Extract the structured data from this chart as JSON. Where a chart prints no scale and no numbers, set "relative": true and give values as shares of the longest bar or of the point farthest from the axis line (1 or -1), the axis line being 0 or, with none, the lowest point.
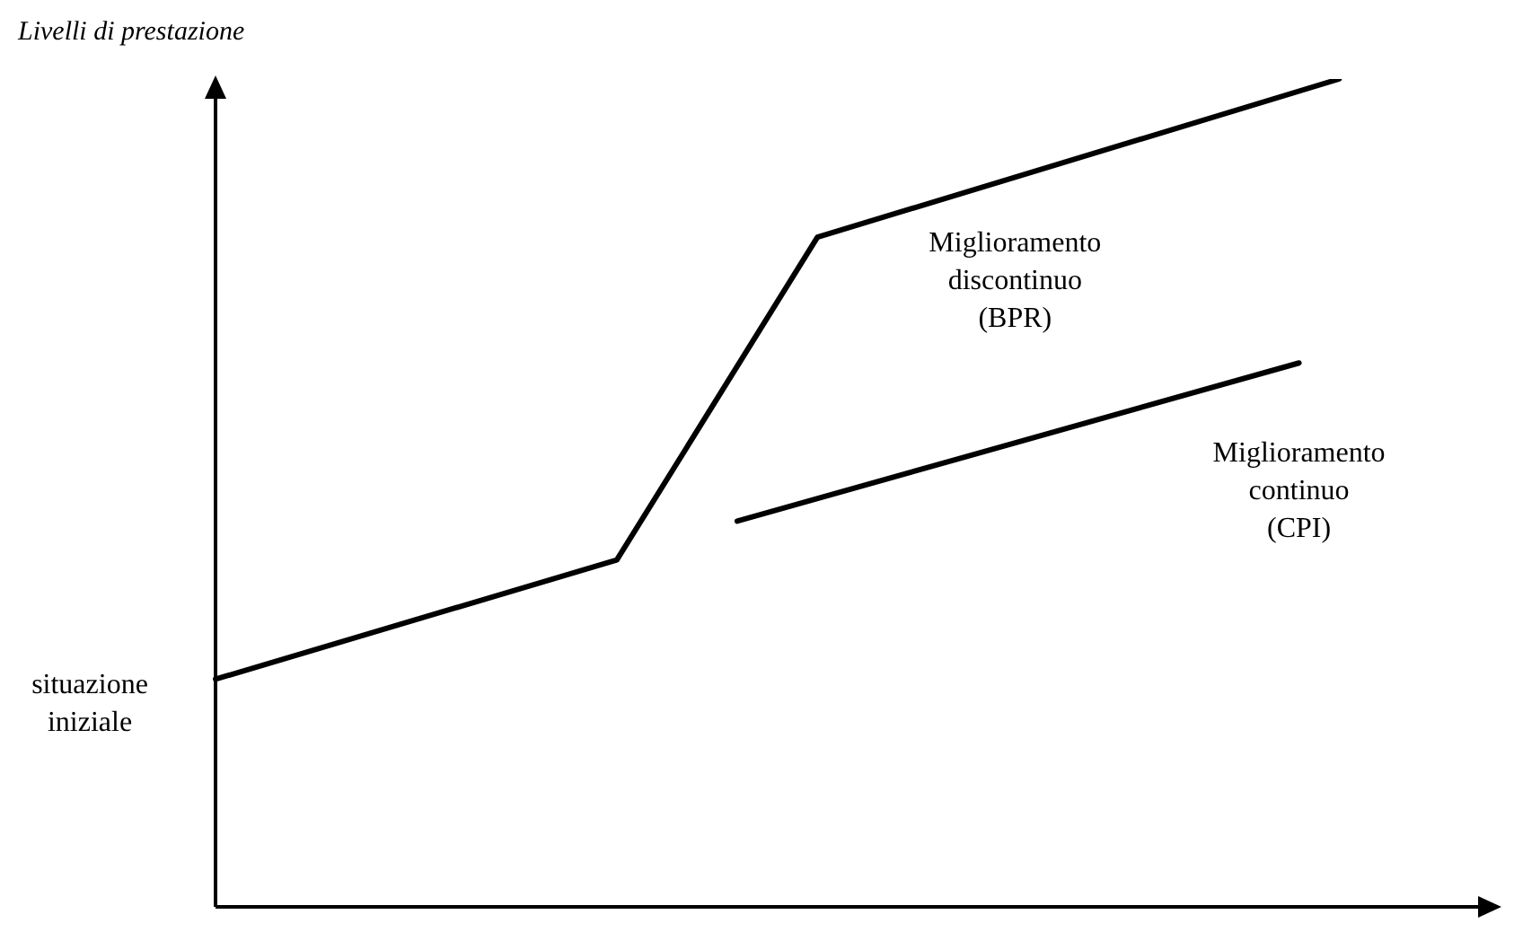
{
  "chart_data": {
    "type": "line",
    "relative": true,
    "ylabel": "Livelli di prestazione",
    "annotations": [
      "situazione iniziale"
    ],
    "marker": "none",
    "legend": false,
    "grid": false,
    "tick_labels": false,
    "categories": [
      null,
      null,
      null,
      null,
      null,
      null,
      null,
      null,
      null,
      null,
      null,
      null,
      null,
      null,
      null,
      null,
      null,
      null,
      null,
      null,
      null,
      null,
      null,
      null,
      null,
      null,
      null,
      null,
      null,
      null,
      null,
      null,
      null
    ],
    "series": [
      {
        "name": "Miglioramento discontinuo (BPR)",
        "color": "#000000",
        "values": [
          0.275,
          null,
          null,
          null,
          null,
          null,
          null,
          null,
          null,
          null,
          0.419,
          null,
          null,
          null,
          null,
          0.809,
          null,
          null,
          null,
          null,
          null,
          null,
          null,
          null,
          null,
          null,
          null,
          null,
          1,
          null,
          null,
          null,
          null
        ]
      },
      {
        "name": "Miglioramento continuo (CPI)",
        "color": "#000000",
        "values": [
          null,
          null,
          null,
          null,
          null,
          null,
          null,
          null,
          null,
          null,
          null,
          null,
          null,
          0.466,
          null,
          null,
          null,
          null,
          null,
          null,
          null,
          null,
          null,
          null,
          null,
          null,
          null,
          0.657,
          null,
          null,
          null,
          null,
          null
        ]
      }
    ]
  }
}
